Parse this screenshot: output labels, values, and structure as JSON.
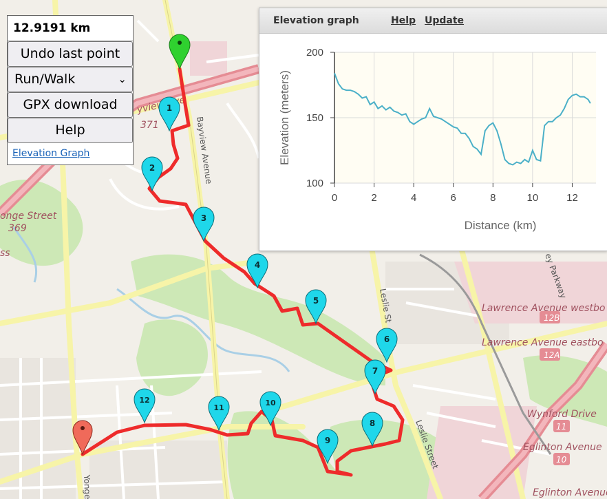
{
  "panel": {
    "distance": "12.9191 km",
    "undo_label": "Undo last point",
    "mode_selected": "Run/Walk",
    "gpx_label": "GPX download",
    "help_label": "Help",
    "elevation_link": "Elevation Graph"
  },
  "graph": {
    "title": "Elevation graph",
    "help_link": "Help",
    "update_link": "Update"
  },
  "map_labels": {
    "street_yonge": "onge Street",
    "route_369": "369",
    "bayview": "Bayview Avenue",
    "bayview_ramp": "yview Ave",
    "route_371": "371",
    "ss_fragment": "ss",
    "lawrence_west": "Lawrence Avenue westbo",
    "exit_12b": "12B",
    "lawrence_east": "Lawrence Avenue eastbo",
    "exit_12a": "12A",
    "wynford": "Wynford Drive",
    "exit_11": "11",
    "eglinton_1": "Eglinton Avenue",
    "exit_10": "10",
    "eglinton_2": "Eglinton Avenue",
    "leslie_1": "Leslie St",
    "leslie_2": "Leslie Street",
    "yonge_vertical": "Yonge",
    "parkway": "ey Parkway"
  },
  "waypoints": [
    "1",
    "2",
    "3",
    "4",
    "5",
    "6",
    "7",
    "8",
    "9",
    "10",
    "11",
    "12"
  ],
  "chart_data": {
    "type": "line",
    "title": "",
    "xlabel": "Distance (km)",
    "ylabel": "Elevation (meters)",
    "xlim": [
      0,
      13.2
    ],
    "ylim": [
      100,
      200
    ],
    "xticks": [
      "0",
      "2",
      "4",
      "6",
      "8",
      "10",
      "12"
    ],
    "yticks": [
      "100",
      "150",
      "200"
    ],
    "grid": true,
    "colors": {
      "line": "#4bb0c8",
      "plot_bg": "#fffdf3",
      "grid": "#dadada"
    },
    "series": [
      {
        "name": "",
        "x": [
          0,
          0.2,
          0.4,
          0.6,
          0.8,
          1.0,
          1.2,
          1.4,
          1.6,
          1.8,
          2.0,
          2.2,
          2.4,
          2.6,
          2.8,
          3.0,
          3.2,
          3.4,
          3.6,
          3.8,
          4.0,
          4.2,
          4.4,
          4.6,
          4.8,
          5.0,
          5.2,
          5.4,
          5.6,
          5.8,
          6.0,
          6.2,
          6.4,
          6.6,
          6.8,
          7.0,
          7.2,
          7.4,
          7.6,
          7.8,
          8.0,
          8.2,
          8.4,
          8.6,
          8.8,
          9.0,
          9.2,
          9.4,
          9.6,
          9.8,
          10.0,
          10.2,
          10.4,
          10.6,
          10.8,
          11.0,
          11.2,
          11.4,
          11.6,
          11.8,
          12.0,
          12.2,
          12.4,
          12.6,
          12.8,
          12.92
        ],
        "values": [
          184,
          176,
          172,
          171,
          171,
          170,
          168,
          165,
          166,
          160,
          162,
          157,
          159,
          156,
          158,
          155,
          154,
          152,
          153,
          147,
          145,
          147,
          149,
          150,
          157,
          151,
          150,
          149,
          147,
          145,
          143,
          142,
          138,
          138,
          134,
          128,
          126,
          122,
          140,
          144,
          146,
          140,
          130,
          118,
          115,
          114,
          116,
          115,
          118,
          116,
          125,
          118,
          117,
          144,
          147,
          147,
          150,
          152,
          157,
          164,
          167,
          168,
          166,
          166,
          164,
          161
        ]
      }
    ]
  }
}
